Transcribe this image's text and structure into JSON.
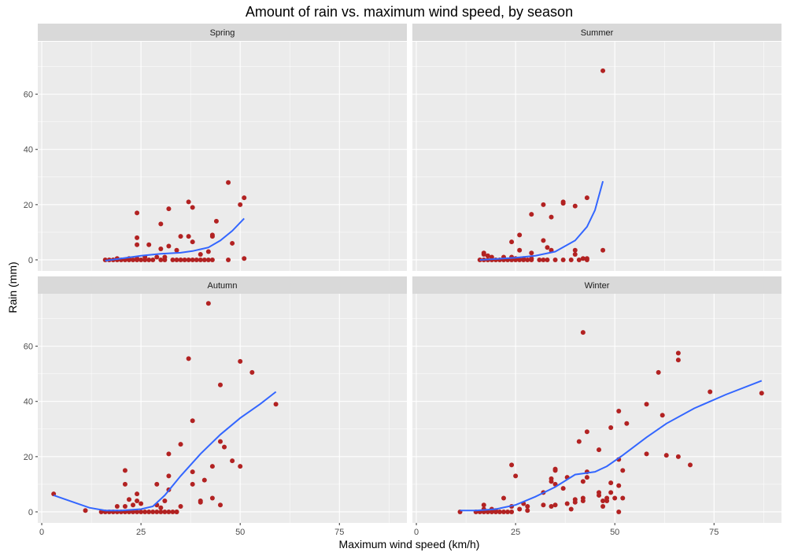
{
  "chart_data": {
    "type": "scatter",
    "title": "Amount of rain vs. maximum wind speed, by season",
    "xlabel": "Maximum wind speed (km/h)",
    "ylabel": "Rain (mm)",
    "xlim": [
      -1,
      92
    ],
    "ylim": [
      -4,
      79
    ],
    "x_ticks": [
      0,
      25,
      50,
      75
    ],
    "y_ticks": [
      0,
      20,
      40,
      60
    ],
    "grid": true,
    "point_color": "#B22222",
    "smooth_color": "#3366FF",
    "panel_background": "#EBEBEB",
    "strip_background": "#D9D9D9",
    "panels": [
      {
        "name": "Spring",
        "points": [
          [
            16,
            0
          ],
          [
            17,
            0
          ],
          [
            18,
            0
          ],
          [
            19,
            0
          ],
          [
            20,
            0
          ],
          [
            21,
            0
          ],
          [
            22,
            0
          ],
          [
            23,
            0
          ],
          [
            24,
            0
          ],
          [
            25,
            0
          ],
          [
            26,
            0
          ],
          [
            27,
            0
          ],
          [
            28,
            0
          ],
          [
            30,
            0
          ],
          [
            31,
            0
          ],
          [
            33,
            0
          ],
          [
            34,
            0
          ],
          [
            35,
            0
          ],
          [
            36,
            0
          ],
          [
            37,
            0
          ],
          [
            38,
            0
          ],
          [
            39,
            0
          ],
          [
            40,
            0
          ],
          [
            41,
            0
          ],
          [
            42,
            0
          ],
          [
            43,
            0
          ],
          [
            47,
            0
          ],
          [
            19,
            0.5
          ],
          [
            22,
            0.5
          ],
          [
            24,
            0.5
          ],
          [
            26,
            1
          ],
          [
            29,
            1
          ],
          [
            31,
            1
          ],
          [
            51,
            0.5
          ],
          [
            24,
            17
          ],
          [
            24,
            8
          ],
          [
            24,
            5.5
          ],
          [
            27,
            5.5
          ],
          [
            30,
            13
          ],
          [
            32,
            18.5
          ],
          [
            32,
            5
          ],
          [
            30,
            4
          ],
          [
            34,
            3.5
          ],
          [
            35,
            8.5
          ],
          [
            37,
            21
          ],
          [
            37,
            8.5
          ],
          [
            38,
            6.5
          ],
          [
            38,
            19
          ],
          [
            40,
            2
          ],
          [
            42,
            3
          ],
          [
            43,
            8.5
          ],
          [
            43,
            9
          ],
          [
            44,
            14
          ],
          [
            47,
            28
          ],
          [
            48,
            6
          ],
          [
            50,
            20
          ],
          [
            51,
            22.5
          ]
        ],
        "smooth": [
          [
            16,
            -0.3
          ],
          [
            20,
            0.5
          ],
          [
            25,
            1.5
          ],
          [
            30,
            2.2
          ],
          [
            35,
            2.6
          ],
          [
            38,
            3.2
          ],
          [
            42,
            4.5
          ],
          [
            45,
            7
          ],
          [
            48,
            10.5
          ],
          [
            51,
            15
          ]
        ]
      },
      {
        "name": "Summer",
        "points": [
          [
            16,
            0
          ],
          [
            17,
            0
          ],
          [
            18,
            0
          ],
          [
            19,
            0
          ],
          [
            20,
            0
          ],
          [
            21,
            0
          ],
          [
            22,
            0
          ],
          [
            23,
            0
          ],
          [
            24,
            0
          ],
          [
            25,
            0
          ],
          [
            26,
            0
          ],
          [
            27,
            0
          ],
          [
            28,
            0
          ],
          [
            29,
            0
          ],
          [
            31,
            0
          ],
          [
            32,
            0
          ],
          [
            33,
            0
          ],
          [
            35,
            0
          ],
          [
            37,
            0
          ],
          [
            39,
            0
          ],
          [
            41,
            0
          ],
          [
            43,
            0
          ],
          [
            17,
            2.5
          ],
          [
            17,
            2
          ],
          [
            18,
            1.5
          ],
          [
            19,
            1
          ],
          [
            22,
            1
          ],
          [
            24,
            1
          ],
          [
            25,
            0.5
          ],
          [
            27,
            0.5
          ],
          [
            29,
            0.5
          ],
          [
            29,
            2.5
          ],
          [
            26,
            3.5
          ],
          [
            26,
            9
          ],
          [
            24,
            6.5
          ],
          [
            29,
            16.5
          ],
          [
            32,
            20
          ],
          [
            32,
            7
          ],
          [
            33,
            4.5
          ],
          [
            34,
            3.5
          ],
          [
            34,
            15.5
          ],
          [
            37,
            20.5
          ],
          [
            37,
            21
          ],
          [
            40,
            19.5
          ],
          [
            40,
            3.5
          ],
          [
            40,
            2
          ],
          [
            42,
            0.5
          ],
          [
            43,
            22.5
          ],
          [
            43,
            0.5
          ],
          [
            47,
            3.5
          ],
          [
            47,
            68.5
          ]
        ],
        "smooth": [
          [
            16,
            0
          ],
          [
            20,
            0.3
          ],
          [
            25,
            0.8
          ],
          [
            30,
            1.5
          ],
          [
            35,
            3
          ],
          [
            40,
            7
          ],
          [
            43,
            12
          ],
          [
            45,
            18
          ],
          [
            47,
            28.5
          ]
        ]
      },
      {
        "name": "Autumn",
        "points": [
          [
            3,
            6.5
          ],
          [
            11,
            0.5
          ],
          [
            15,
            0
          ],
          [
            16,
            0
          ],
          [
            17,
            0
          ],
          [
            18,
            0
          ],
          [
            19,
            0
          ],
          [
            20,
            0
          ],
          [
            21,
            0
          ],
          [
            22,
            0
          ],
          [
            23,
            0
          ],
          [
            24,
            0
          ],
          [
            25,
            0
          ],
          [
            26,
            0
          ],
          [
            27,
            0
          ],
          [
            28,
            0
          ],
          [
            29,
            0
          ],
          [
            30,
            0
          ],
          [
            31,
            0
          ],
          [
            32,
            0
          ],
          [
            33,
            0
          ],
          [
            34,
            0
          ],
          [
            19,
            2
          ],
          [
            21,
            2
          ],
          [
            22,
            4.5
          ],
          [
            23,
            2.5
          ],
          [
            24,
            4
          ],
          [
            24,
            6.5
          ],
          [
            21,
            15
          ],
          [
            21,
            10
          ],
          [
            25,
            3
          ],
          [
            29,
            10
          ],
          [
            29,
            2.5
          ],
          [
            30,
            1.5
          ],
          [
            31,
            4
          ],
          [
            32,
            8
          ],
          [
            32,
            13
          ],
          [
            32,
            21
          ],
          [
            34,
            0
          ],
          [
            35,
            24.5
          ],
          [
            35,
            2
          ],
          [
            37,
            55.5
          ],
          [
            38,
            33
          ],
          [
            38,
            14.5
          ],
          [
            38,
            10
          ],
          [
            40,
            4
          ],
          [
            40,
            3.5
          ],
          [
            41,
            11.5
          ],
          [
            42,
            75.5
          ],
          [
            43,
            16.5
          ],
          [
            43,
            5
          ],
          [
            45,
            46
          ],
          [
            45,
            2.5
          ],
          [
            45,
            25.5
          ],
          [
            46,
            23.5
          ],
          [
            48,
            18.5
          ],
          [
            50,
            54.5
          ],
          [
            50,
            16.5
          ],
          [
            53,
            50.5
          ],
          [
            59,
            39
          ]
        ],
        "smooth": [
          [
            3,
            6
          ],
          [
            8,
            3.5
          ],
          [
            12,
            1.5
          ],
          [
            16,
            0.5
          ],
          [
            20,
            0.5
          ],
          [
            25,
            1
          ],
          [
            28,
            2
          ],
          [
            31,
            6
          ],
          [
            35,
            13
          ],
          [
            40,
            21
          ],
          [
            45,
            28
          ],
          [
            50,
            34
          ],
          [
            55,
            39
          ],
          [
            59,
            43.5
          ]
        ]
      },
      {
        "name": "Winter",
        "points": [
          [
            11,
            0
          ],
          [
            15,
            0
          ],
          [
            16,
            0
          ],
          [
            17,
            0
          ],
          [
            18,
            0
          ],
          [
            19,
            0
          ],
          [
            20,
            0
          ],
          [
            21,
            0
          ],
          [
            22,
            0
          ],
          [
            23,
            0
          ],
          [
            24,
            0
          ],
          [
            17,
            2.5
          ],
          [
            17,
            1
          ],
          [
            19,
            1
          ],
          [
            20,
            0.5
          ],
          [
            22,
            5
          ],
          [
            24,
            2
          ],
          [
            24,
            17
          ],
          [
            25,
            13
          ],
          [
            26,
            1
          ],
          [
            27,
            3
          ],
          [
            28,
            2
          ],
          [
            28,
            0.5
          ],
          [
            32,
            7
          ],
          [
            32,
            2.5
          ],
          [
            34,
            11
          ],
          [
            34,
            12
          ],
          [
            34,
            2
          ],
          [
            35,
            15.5
          ],
          [
            35,
            15
          ],
          [
            35,
            10
          ],
          [
            35,
            2.5
          ],
          [
            37,
            8.5
          ],
          [
            38,
            12.5
          ],
          [
            38,
            3
          ],
          [
            39,
            1
          ],
          [
            40,
            4.5
          ],
          [
            40,
            3.5
          ],
          [
            41,
            25.5
          ],
          [
            42,
            65
          ],
          [
            42,
            5
          ],
          [
            42,
            4
          ],
          [
            42,
            11
          ],
          [
            43,
            29
          ],
          [
            43,
            14.5
          ],
          [
            43,
            12.5
          ],
          [
            46,
            22.5
          ],
          [
            46,
            7
          ],
          [
            46,
            6
          ],
          [
            47,
            2
          ],
          [
            47,
            4
          ],
          [
            48,
            4
          ],
          [
            48,
            5
          ],
          [
            49,
            30.5
          ],
          [
            49,
            10.5
          ],
          [
            49,
            7
          ],
          [
            50,
            5
          ],
          [
            51,
            36.5
          ],
          [
            51,
            19
          ],
          [
            51,
            9.5
          ],
          [
            51,
            0
          ],
          [
            52,
            15
          ],
          [
            52,
            5
          ],
          [
            53,
            32
          ],
          [
            58,
            39
          ],
          [
            58,
            21
          ],
          [
            61,
            50.5
          ],
          [
            62,
            35
          ],
          [
            63,
            20.5
          ],
          [
            66,
            57.5
          ],
          [
            66,
            55
          ],
          [
            66,
            20
          ],
          [
            69,
            17
          ],
          [
            74,
            43.5
          ],
          [
            87,
            43
          ]
        ],
        "smooth": [
          [
            11,
            0.5
          ],
          [
            15,
            0.5
          ],
          [
            20,
            1
          ],
          [
            25,
            2.5
          ],
          [
            30,
            5.5
          ],
          [
            35,
            9
          ],
          [
            40,
            13.5
          ],
          [
            45,
            14.5
          ],
          [
            48,
            16.5
          ],
          [
            52,
            20.5
          ],
          [
            58,
            27
          ],
          [
            63,
            32
          ],
          [
            70,
            37.5
          ],
          [
            78,
            42.5
          ],
          [
            87,
            47.5
          ]
        ]
      }
    ]
  }
}
